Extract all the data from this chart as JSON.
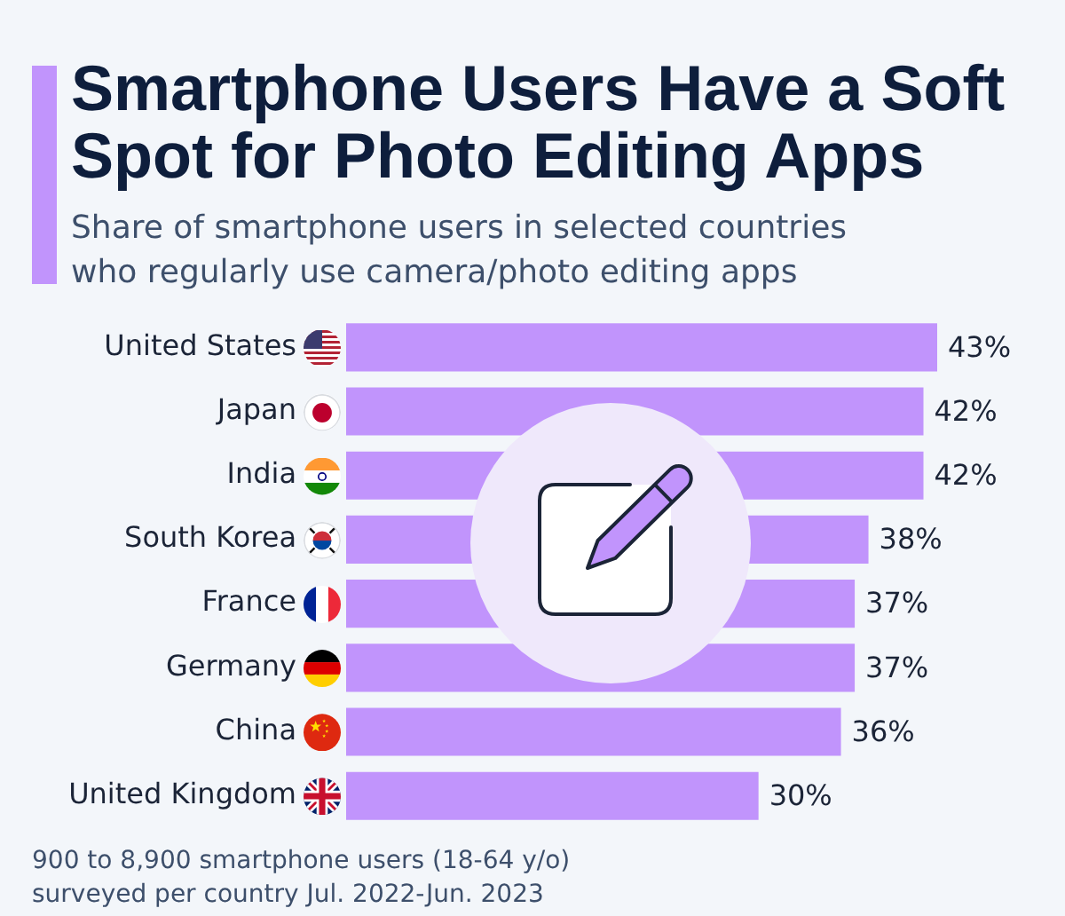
{
  "chart_data": {
    "type": "bar",
    "orientation": "horizontal",
    "title": "Smartphone Users Have a Soft Spot for Photo Editing Apps",
    "subtitle": "Share of smartphone users in selected countries who regularly use camera/photo editing apps",
    "categories": [
      "United States",
      "Japan",
      "India",
      "South Korea",
      "France",
      "Germany",
      "China",
      "United Kingdom"
    ],
    "values": [
      43,
      42,
      42,
      38,
      37,
      37,
      36,
      30
    ],
    "value_labels": [
      "43%",
      "42%",
      "42%",
      "38%",
      "37%",
      "37%",
      "36%",
      "30%"
    ],
    "color": "#c194fc",
    "tick_labels": "y",
    "grid": false,
    "legend": false,
    "annotations": [
      "900 to 8,900 smartphone users (18-64 y/o) surveyed per country Jul. 2022-Jun. 2023"
    ]
  }
}
